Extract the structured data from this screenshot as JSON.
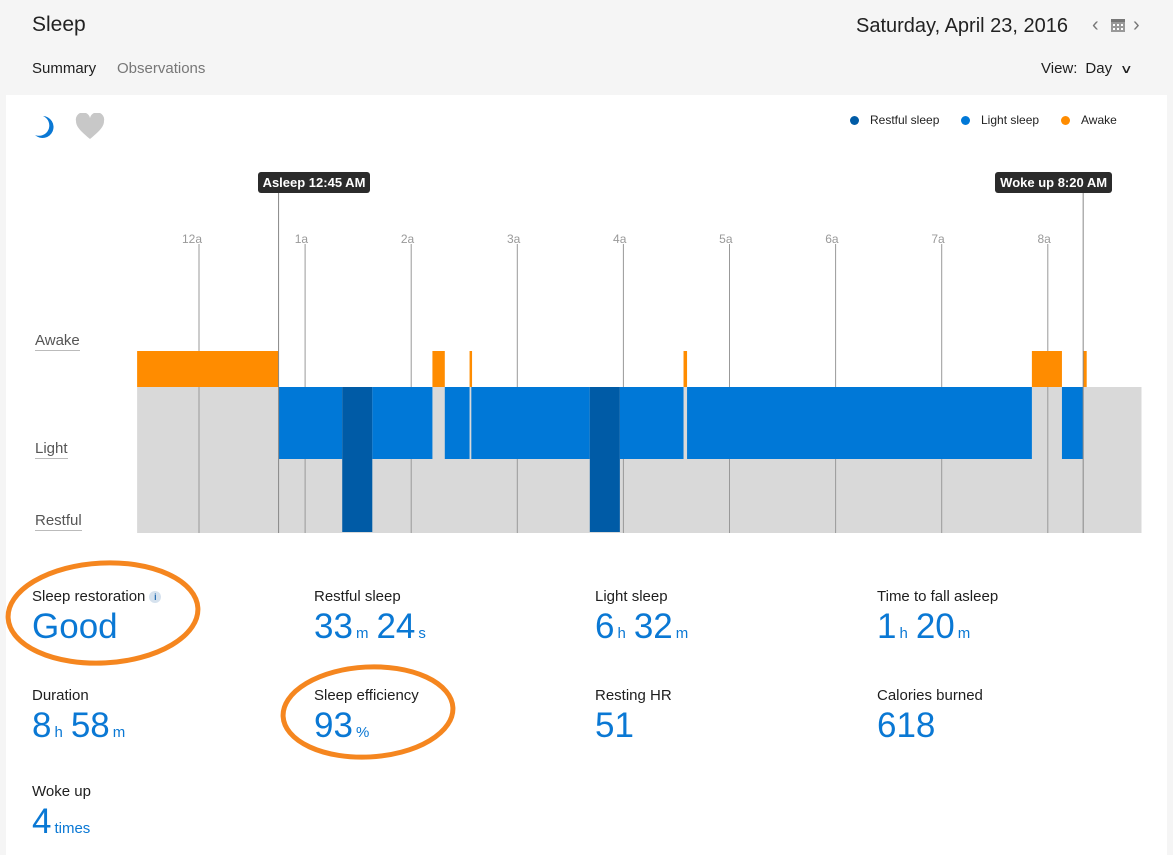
{
  "header": {
    "title": "Sleep",
    "date": "Saturday, April 23, 2016",
    "prev_icon": "chevron-left-icon",
    "calendar_icon": "calendar-icon",
    "next_icon": "chevron-right-icon",
    "tabs": [
      {
        "label": "Summary",
        "active": true
      },
      {
        "label": "Observations",
        "active": false
      }
    ],
    "view_label": "View:",
    "view_value": "Day"
  },
  "icons": {
    "sleep": "moon-icon",
    "heart": "heart-icon"
  },
  "colors": {
    "restful": "#005ba6",
    "light": "#0078d7",
    "awake": "#ff8c00",
    "background_band": "#d9d9d9"
  },
  "chart_data": {
    "type": "timeline",
    "legend": [
      {
        "name": "Restful sleep",
        "color": "#005ba6"
      },
      {
        "name": "Light sleep",
        "color": "#0078d7"
      },
      {
        "name": "Awake",
        "color": "#ff8c00"
      }
    ],
    "legend_position": "top-right",
    "y_levels": [
      "Awake",
      "Light",
      "Restful"
    ],
    "x_ticks": [
      "12a",
      "1a",
      "2a",
      "3a",
      "4a",
      "5a",
      "6a",
      "7a",
      "8a"
    ],
    "x_range": [
      "23:25",
      "08:53"
    ],
    "annotations": [
      {
        "label": "Asleep 12:45 AM",
        "time": "00:45"
      },
      {
        "label": "Woke up 8:20 AM",
        "time": "08:20"
      }
    ],
    "segments": [
      {
        "stage": "Awake",
        "start": "23:25",
        "end": "00:45"
      },
      {
        "stage": "Light",
        "start": "00:45",
        "end": "01:21"
      },
      {
        "stage": "Restful",
        "start": "01:21",
        "end": "01:38"
      },
      {
        "stage": "Light",
        "start": "01:38",
        "end": "02:12"
      },
      {
        "stage": "Awake",
        "start": "02:12",
        "end": "02:19"
      },
      {
        "stage": "Light",
        "start": "02:19",
        "end": "02:33"
      },
      {
        "stage": "Awake",
        "start": "02:33",
        "end": "02:34"
      },
      {
        "stage": "Light",
        "start": "02:34",
        "end": "03:41"
      },
      {
        "stage": "Restful",
        "start": "03:41",
        "end": "03:58"
      },
      {
        "stage": "Light",
        "start": "03:58",
        "end": "04:34"
      },
      {
        "stage": "Awake",
        "start": "04:34",
        "end": "04:36"
      },
      {
        "stage": "Light",
        "start": "04:36",
        "end": "07:51"
      },
      {
        "stage": "Awake",
        "start": "07:51",
        "end": "08:08"
      },
      {
        "stage": "Light",
        "start": "08:08",
        "end": "08:20"
      },
      {
        "stage": "Awake",
        "start": "08:20",
        "end": "08:22"
      }
    ]
  },
  "stats": [
    {
      "label": "Sleep restoration",
      "value": "Good",
      "info_icon": "info-icon"
    },
    {
      "label": "Restful sleep",
      "parts": [
        {
          "n": "33",
          "u": "m"
        },
        {
          "n": "24",
          "u": "s"
        }
      ]
    },
    {
      "label": "Light sleep",
      "parts": [
        {
          "n": "6",
          "u": "h"
        },
        {
          "n": "32",
          "u": "m"
        }
      ]
    },
    {
      "label": "Time to fall asleep",
      "parts": [
        {
          "n": "1",
          "u": "h"
        },
        {
          "n": "20",
          "u": "m"
        }
      ]
    },
    {
      "label": "Duration",
      "parts": [
        {
          "n": "8",
          "u": "h"
        },
        {
          "n": "58",
          "u": "m"
        }
      ]
    },
    {
      "label": "Sleep efficiency",
      "parts": [
        {
          "n": "93",
          "u": "%"
        }
      ]
    },
    {
      "label": "Resting HR",
      "value": "51"
    },
    {
      "label": "Calories burned",
      "value": "618"
    },
    {
      "label": "Woke up",
      "parts": [
        {
          "n": "4",
          "u": "times"
        }
      ]
    }
  ]
}
